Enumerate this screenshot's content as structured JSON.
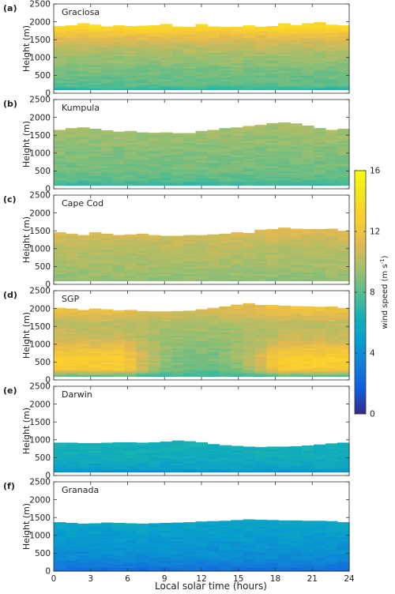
{
  "chart_data": {
    "type": "heatmap",
    "xlabel": "Local solar time (hours)",
    "ylabel": "Height (m)",
    "x_ticks": [
      0,
      3,
      6,
      9,
      12,
      15,
      18,
      21,
      24
    ],
    "y_ticks": [
      0,
      500,
      1000,
      1500,
      2000,
      2500
    ],
    "xlim": [
      0,
      24
    ],
    "ylim": [
      0,
      2500
    ],
    "colorbar": {
      "label_main": "wind speed (m s",
      "label_sup": "-1",
      "label_close": ")",
      "ticks": [
        0,
        4,
        8,
        12,
        16
      ],
      "range": [
        0,
        16
      ],
      "colormap": "parula"
    },
    "panels": [
      {
        "label": "(a)",
        "site": "Graciosa",
        "top_heights": [
          1880,
          1900,
          1960,
          1920,
          1870,
          1900,
          1880,
          1890,
          1900,
          1940,
          1870,
          1860,
          1940,
          1870,
          1860,
          1860,
          1900,
          1860,
          1880,
          1960,
          1910,
          1960,
          1990,
          1920,
          1900
        ],
        "bottom": 100,
        "profile": [
          [
            100,
            6.5
          ],
          [
            200,
            8.0
          ],
          [
            600,
            8.6
          ],
          [
            1000,
            9.4
          ],
          [
            1400,
            10.6
          ],
          [
            1700,
            12.2
          ],
          [
            1900,
            13.8
          ]
        ]
      },
      {
        "label": "(b)",
        "site": "Kumpula",
        "top_heights": [
          1650,
          1700,
          1720,
          1680,
          1640,
          1600,
          1620,
          1580,
          1570,
          1580,
          1560,
          1560,
          1620,
          1650,
          1700,
          1720,
          1760,
          1790,
          1840,
          1860,
          1830,
          1770,
          1700,
          1650,
          1680
        ],
        "bottom": 100,
        "profile": [
          [
            100,
            7.0
          ],
          [
            250,
            8.0
          ],
          [
            600,
            8.6
          ],
          [
            1000,
            8.9
          ],
          [
            1400,
            9.3
          ],
          [
            1800,
            9.8
          ]
        ]
      },
      {
        "label": "(c)",
        "site": "Cape Cod",
        "top_heights": [
          1460,
          1420,
          1380,
          1460,
          1420,
          1380,
          1400,
          1420,
          1380,
          1360,
          1360,
          1380,
          1380,
          1400,
          1420,
          1460,
          1440,
          1530,
          1550,
          1590,
          1560,
          1550,
          1550,
          1560,
          1500
        ],
        "bottom": 100,
        "profile": [
          [
            100,
            9.0
          ],
          [
            400,
            9.5
          ],
          [
            900,
            10.0
          ],
          [
            1300,
            10.6
          ],
          [
            1600,
            11.6
          ]
        ]
      },
      {
        "label": "(d)",
        "site": "SGP",
        "top_heights": [
          2020,
          2000,
          1960,
          2000,
          1980,
          1950,
          1960,
          1930,
          1920,
          1920,
          1930,
          1940,
          1980,
          2020,
          2060,
          2110,
          2150,
          2100,
          2100,
          2080,
          2070,
          2060,
          2050,
          2060,
          2020
        ],
        "bottom": 100,
        "diurnal": true,
        "night_profile": [
          [
            100,
            7.5
          ],
          [
            300,
            12.5
          ],
          [
            600,
            12.8
          ],
          [
            900,
            11.8
          ],
          [
            1200,
            10.5
          ],
          [
            1600,
            10.2
          ],
          [
            2000,
            12.0
          ]
        ],
        "day_profile": [
          [
            100,
            7.0
          ],
          [
            300,
            8.2
          ],
          [
            800,
            8.8
          ],
          [
            1200,
            9.3
          ],
          [
            1600,
            9.8
          ],
          [
            2000,
            11.0
          ]
        ]
      },
      {
        "label": "(e)",
        "site": "Darwin",
        "top_heights": [
          920,
          920,
          910,
          910,
          920,
          930,
          930,
          920,
          930,
          950,
          980,
          960,
          930,
          880,
          850,
          830,
          810,
          800,
          810,
          810,
          820,
          840,
          870,
          900,
          920
        ],
        "bottom": 100,
        "profile": [
          [
            100,
            3.5
          ],
          [
            200,
            5.3
          ],
          [
            500,
            6.0
          ],
          [
            800,
            6.2
          ],
          [
            1000,
            6.3
          ]
        ]
      },
      {
        "label": "(f)",
        "site": "Granada",
        "top_heights": [
          1370,
          1350,
          1330,
          1340,
          1360,
          1350,
          1340,
          1330,
          1340,
          1350,
          1360,
          1370,
          1390,
          1400,
          1410,
          1430,
          1450,
          1440,
          1430,
          1420,
          1420,
          1410,
          1410,
          1400,
          1370
        ],
        "bottom": 0,
        "profile": [
          [
            0,
            2.2
          ],
          [
            150,
            3.0
          ],
          [
            400,
            4.0
          ],
          [
            800,
            4.6
          ],
          [
            1100,
            5.0
          ],
          [
            1400,
            5.4
          ]
        ]
      }
    ]
  }
}
